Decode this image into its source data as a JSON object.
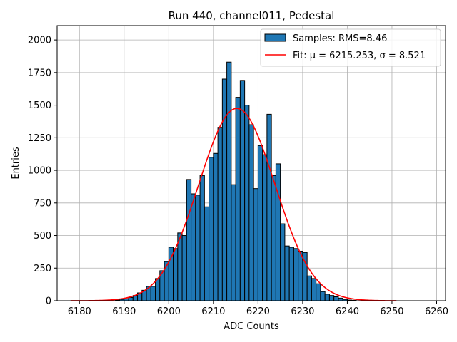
{
  "chart_data": {
    "type": "bar",
    "title": "Run 440, channel011, Pedestal",
    "xlabel": "ADC Counts",
    "ylabel": "Entries",
    "xlim": [
      6175,
      6262
    ],
    "ylim": [
      0,
      2110
    ],
    "xticks": [
      6180,
      6190,
      6200,
      6210,
      6220,
      6230,
      6240,
      6250,
      6260
    ],
    "yticks": [
      0,
      250,
      500,
      750,
      1000,
      1250,
      1500,
      1750,
      2000
    ],
    "grid": true,
    "legend_position": "top-right",
    "bar_color": "#1f77b4",
    "fit_color": "#ff0000",
    "histogram": {
      "name": "Samples: RMS=8.46",
      "bin_start": 6188,
      "bin_width": 1,
      "counts": [
        5,
        10,
        15,
        25,
        40,
        60,
        80,
        110,
        110,
        170,
        230,
        300,
        410,
        400,
        520,
        500,
        930,
        820,
        810,
        960,
        720,
        1100,
        1130,
        1330,
        1700,
        1830,
        890,
        1560,
        1690,
        1500,
        1350,
        860,
        1190,
        1120,
        1430,
        960,
        1050,
        590,
        420,
        410,
        400,
        380,
        370,
        190,
        170,
        130,
        70,
        50,
        40,
        30,
        20,
        10,
        5,
        3
      ]
    },
    "fit": {
      "name": "Fit: μ = 6215.253, σ = 8.521",
      "mu": 6215.253,
      "sigma": 8.521,
      "amplitude": 1475,
      "x_range": [
        6178,
        6251
      ]
    }
  }
}
